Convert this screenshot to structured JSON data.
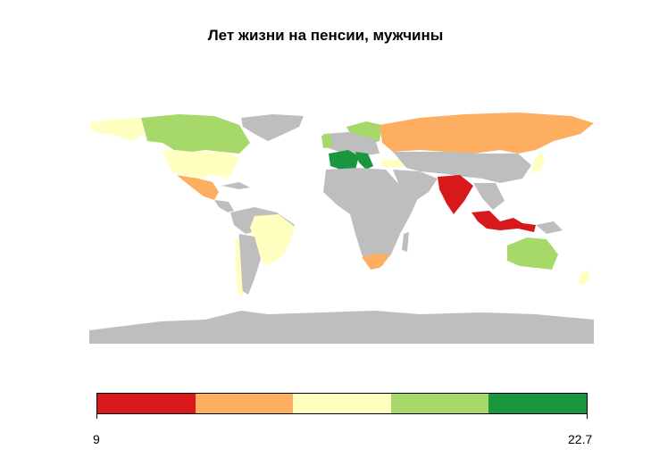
{
  "title": "Лет жизни на пенсии, мужчины",
  "colors": {
    "no_data": "#bebebe",
    "bins": [
      "#d7191c",
      "#fdae61",
      "#ffffbf",
      "#a6d96a",
      "#1a9641"
    ]
  },
  "legend": {
    "min_label": "9",
    "max_label": "22.7"
  }
}
